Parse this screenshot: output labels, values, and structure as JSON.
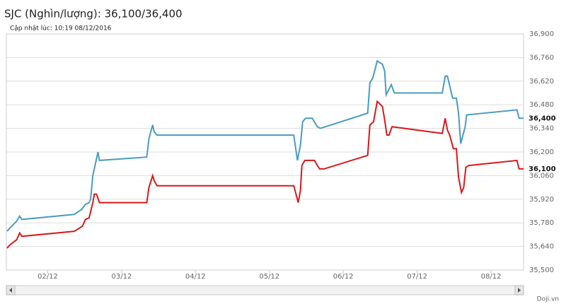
{
  "chart_data": {
    "type": "line",
    "title": "SJC (Nghìn/lượng): 36,100/36,400",
    "subtitle": "Cập nhật lúc: 10:19 08/12/2016",
    "credit": "Doji.vn",
    "xlim": [
      1.44,
      8.44
    ],
    "xticks": [
      {
        "value": 2,
        "label": "02/12"
      },
      {
        "value": 3,
        "label": "03/12"
      },
      {
        "value": 4,
        "label": "04/12"
      },
      {
        "value": 5,
        "label": "05/12"
      },
      {
        "value": 6,
        "label": "06/12"
      },
      {
        "value": 7,
        "label": "07/12"
      },
      {
        "value": 8,
        "label": "08/12"
      }
    ],
    "ylim": [
      35500,
      36900
    ],
    "yticks": [
      {
        "value": 35500,
        "label": "35,500"
      },
      {
        "value": 35640,
        "label": "35,640"
      },
      {
        "value": 35780,
        "label": "35,780"
      },
      {
        "value": 35920,
        "label": "35,920"
      },
      {
        "value": 36060,
        "label": "36,060"
      },
      {
        "value": 36200,
        "label": "36,200"
      },
      {
        "value": 36340,
        "label": "36,340"
      },
      {
        "value": 36480,
        "label": "36,480"
      },
      {
        "value": 36620,
        "label": "36,620"
      },
      {
        "value": 36760,
        "label": "36,760"
      },
      {
        "value": 36900,
        "label": "36,900"
      }
    ],
    "grid": true,
    "series": [
      {
        "color": "#4a9bc0",
        "end_label": {
          "value": 36400,
          "label": "36,400"
        },
        "x": [
          1.45,
          1.49,
          1.58,
          1.62,
          1.65,
          2.36,
          2.46,
          2.51,
          2.56,
          2.58,
          2.61,
          2.68,
          2.7,
          3.34,
          3.37,
          3.42,
          3.44,
          3.48,
          5.33,
          5.38,
          5.42,
          5.45,
          5.49,
          5.58,
          5.65,
          5.69,
          6.33,
          6.36,
          6.4,
          6.46,
          6.53,
          6.56,
          6.58,
          6.65,
          6.69,
          7.34,
          7.38,
          7.41,
          7.48,
          7.53,
          7.56,
          7.59,
          7.65,
          7.67,
          8.35,
          8.38,
          8.44
        ],
        "values": [
          35730,
          35750,
          35790,
          35820,
          35800,
          35830,
          35860,
          35890,
          35900,
          35920,
          36060,
          36200,
          36150,
          36170,
          36280,
          36360,
          36320,
          36300,
          36300,
          36150,
          36240,
          36380,
          36400,
          36400,
          36350,
          36340,
          36430,
          36610,
          36640,
          36740,
          36720,
          36680,
          36540,
          36600,
          36550,
          36550,
          36650,
          36650,
          36520,
          36520,
          36430,
          36250,
          36350,
          36420,
          36450,
          36400,
          36400
        ]
      },
      {
        "color": "#d7191c",
        "end_label": {
          "value": 36100,
          "label": "36,100"
        },
        "x": [
          1.45,
          1.49,
          1.58,
          1.62,
          1.65,
          2.36,
          2.47,
          2.51,
          2.56,
          2.61,
          2.63,
          2.66,
          2.7,
          3.34,
          3.37,
          3.42,
          3.44,
          3.48,
          5.33,
          5.36,
          5.39,
          5.42,
          5.44,
          5.48,
          5.61,
          5.65,
          5.68,
          5.74,
          6.33,
          6.36,
          6.41,
          6.46,
          6.53,
          6.56,
          6.59,
          6.62,
          6.66,
          7.34,
          7.38,
          7.41,
          7.44,
          7.49,
          7.53,
          7.56,
          7.6,
          7.63,
          7.66,
          7.7,
          8.35,
          8.38,
          8.44
        ],
        "values": [
          35630,
          35650,
          35680,
          35720,
          35700,
          35730,
          35760,
          35800,
          35810,
          35900,
          35950,
          35950,
          35900,
          35900,
          35990,
          36060,
          36030,
          36000,
          36000,
          35950,
          35900,
          35970,
          36120,
          36150,
          36150,
          36120,
          36100,
          36100,
          36180,
          36360,
          36380,
          36500,
          36470,
          36390,
          36300,
          36300,
          36350,
          36310,
          36400,
          36330,
          36300,
          36220,
          36220,
          36050,
          35960,
          35990,
          36110,
          36120,
          36150,
          36100,
          36100
        ]
      }
    ]
  }
}
